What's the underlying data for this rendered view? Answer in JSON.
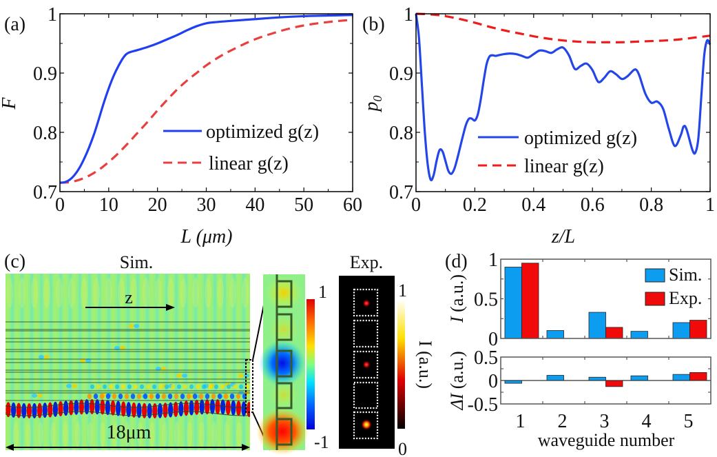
{
  "panels": {
    "a": {
      "label": "(a)"
    },
    "b": {
      "label": "(b)"
    },
    "c": {
      "label": "(c)",
      "sim_title": "Sim.",
      "exp_title": "Exp.",
      "z_label": "z",
      "scale_label": "18μm",
      "colorbar_field": {
        "max": "1",
        "min": "-1"
      },
      "colorbar_intensity": {
        "max": "1",
        "min": "0",
        "label": "I (a.u.)"
      }
    },
    "d": {
      "label": "(d)"
    }
  },
  "chart_data": [
    {
      "id": "a",
      "type": "line",
      "xlabel": "L (μm)",
      "ylabel": "F",
      "xlim": [
        0,
        60
      ],
      "ylim": [
        0.7,
        1
      ],
      "xticks": [
        0,
        10,
        20,
        30,
        40,
        50,
        60
      ],
      "xticklabels": [
        "0",
        "10",
        "20",
        "30",
        "40",
        "50",
        "60"
      ],
      "yticks": [
        0.7,
        0.8,
        0.9,
        1
      ],
      "yticklabels": [
        "0.7",
        "0.8",
        "0.9",
        "1"
      ],
      "legend_position": "center-right",
      "series": [
        {
          "name": "optimized g(z)",
          "style": "solid",
          "color": "#1f3ff0",
          "x": [
            0,
            1,
            2,
            3,
            4,
            5,
            6,
            7,
            8,
            9,
            10,
            11,
            12,
            13,
            14,
            16,
            18,
            20,
            22,
            24,
            26,
            28,
            30,
            32,
            35,
            40,
            45,
            50,
            55,
            60
          ],
          "y": [
            0.715,
            0.716,
            0.72,
            0.728,
            0.74,
            0.756,
            0.775,
            0.797,
            0.823,
            0.85,
            0.874,
            0.895,
            0.912,
            0.926,
            0.934,
            0.939,
            0.944,
            0.95,
            0.957,
            0.964,
            0.972,
            0.979,
            0.984,
            0.986,
            0.988,
            0.991,
            0.994,
            0.996,
            0.997,
            0.998
          ]
        },
        {
          "name": "linear g(z)",
          "style": "dashed",
          "color": "#e8403f",
          "x": [
            0,
            2,
            4,
            6,
            8,
            10,
            12,
            14,
            16,
            18,
            20,
            22,
            24,
            26,
            28,
            30,
            33,
            36,
            40,
            44,
            48,
            52,
            56,
            60
          ],
          "y": [
            0.715,
            0.716,
            0.72,
            0.727,
            0.737,
            0.75,
            0.765,
            0.782,
            0.8,
            0.818,
            0.837,
            0.855,
            0.872,
            0.887,
            0.9,
            0.913,
            0.929,
            0.942,
            0.957,
            0.968,
            0.977,
            0.983,
            0.987,
            0.99
          ]
        }
      ]
    },
    {
      "id": "b",
      "type": "line",
      "xlabel": "z/L",
      "ylabel": "p0",
      "xlim": [
        0,
        1
      ],
      "ylim": [
        0.7,
        1
      ],
      "xticks": [
        0,
        0.2,
        0.4,
        0.6,
        0.8,
        1
      ],
      "xticklabels": [
        "0",
        "0.2",
        "0.4",
        "0.6",
        "0.8",
        "1"
      ],
      "yticks": [
        0.7,
        0.8,
        0.9,
        1
      ],
      "yticklabels": [
        "0.7",
        "0.8",
        "0.9",
        "1"
      ],
      "legend_position": "bottom-center",
      "series": [
        {
          "name": "optimized g(z)",
          "style": "solid",
          "color": "#2246e8",
          "x": [
            0,
            0.01,
            0.02,
            0.03,
            0.04,
            0.05,
            0.06,
            0.07,
            0.08,
            0.09,
            0.1,
            0.11,
            0.12,
            0.13,
            0.14,
            0.15,
            0.16,
            0.17,
            0.18,
            0.19,
            0.2,
            0.21,
            0.22,
            0.23,
            0.24,
            0.25,
            0.26,
            0.27,
            0.28,
            0.3,
            0.32,
            0.34,
            0.36,
            0.38,
            0.4,
            0.42,
            0.44,
            0.46,
            0.48,
            0.5,
            0.52,
            0.54,
            0.56,
            0.58,
            0.6,
            0.62,
            0.64,
            0.66,
            0.68,
            0.7,
            0.72,
            0.74,
            0.75,
            0.76,
            0.78,
            0.8,
            0.82,
            0.84,
            0.86,
            0.88,
            0.9,
            0.91,
            0.92,
            0.94,
            0.95,
            0.96,
            0.97,
            0.98,
            0.99,
            1.0
          ],
          "y": [
            1.0,
            0.96,
            0.88,
            0.8,
            0.745,
            0.72,
            0.728,
            0.752,
            0.77,
            0.768,
            0.752,
            0.735,
            0.73,
            0.738,
            0.755,
            0.775,
            0.795,
            0.813,
            0.823,
            0.823,
            0.82,
            0.83,
            0.855,
            0.887,
            0.915,
            0.928,
            0.93,
            0.929,
            0.93,
            0.932,
            0.933,
            0.932,
            0.929,
            0.926,
            0.932,
            0.938,
            0.937,
            0.934,
            0.94,
            0.943,
            0.93,
            0.907,
            0.912,
            0.916,
            0.905,
            0.885,
            0.892,
            0.903,
            0.898,
            0.89,
            0.895,
            0.905,
            0.905,
            0.895,
            0.865,
            0.85,
            0.852,
            0.84,
            0.805,
            0.777,
            0.795,
            0.81,
            0.805,
            0.77,
            0.766,
            0.79,
            0.86,
            0.93,
            0.955,
            0.948
          ]
        },
        {
          "name": "linear g(z)",
          "style": "dashed",
          "color": "#ee1c1c",
          "x": [
            0,
            0.05,
            0.1,
            0.15,
            0.2,
            0.25,
            0.3,
            0.35,
            0.4,
            0.45,
            0.5,
            0.55,
            0.6,
            0.65,
            0.7,
            0.75,
            0.8,
            0.85,
            0.9,
            0.95,
            1.0
          ],
          "y": [
            1.0,
            0.999,
            0.996,
            0.991,
            0.985,
            0.978,
            0.972,
            0.967,
            0.962,
            0.958,
            0.955,
            0.953,
            0.952,
            0.952,
            0.952,
            0.953,
            0.954,
            0.955,
            0.957,
            0.96,
            0.963
          ]
        }
      ]
    },
    {
      "id": "d-top",
      "type": "bar",
      "ylabel": "I (a.u.)",
      "ylim": [
        0,
        1
      ],
      "yticks": [
        0,
        0.5,
        1
      ],
      "yticklabels": [
        "0",
        "0.5",
        "1"
      ],
      "categories": [
        "1",
        "2",
        "3",
        "4",
        "5"
      ],
      "legend_position": "top-right",
      "series": [
        {
          "name": "Sim.",
          "color": "#0d9df0",
          "values": [
            0.9,
            0.1,
            0.33,
            0.09,
            0.2
          ]
        },
        {
          "name": "Exp.",
          "color": "#f00a0a",
          "values": [
            0.95,
            0.0,
            0.14,
            0.0,
            0.23
          ]
        }
      ]
    },
    {
      "id": "d-bottom",
      "type": "bar",
      "xlabel": "waveguide number",
      "ylabel": "ΔI (a.u.)",
      "ylim": [
        -0.5,
        0.5
      ],
      "yticks": [
        -0.5,
        0,
        0.5
      ],
      "yticklabels": [
        "-0.5",
        "0",
        "0.5"
      ],
      "categories": [
        "1",
        "2",
        "3",
        "4",
        "5"
      ],
      "series": [
        {
          "name": "Sim.",
          "color": "#0d9df0",
          "values": [
            -0.06,
            0.11,
            0.07,
            0.1,
            0.13
          ]
        },
        {
          "name": "Exp.",
          "color": "#f00a0a",
          "values": [
            0.0,
            0.0,
            -0.13,
            0.0,
            0.17
          ]
        }
      ]
    }
  ]
}
